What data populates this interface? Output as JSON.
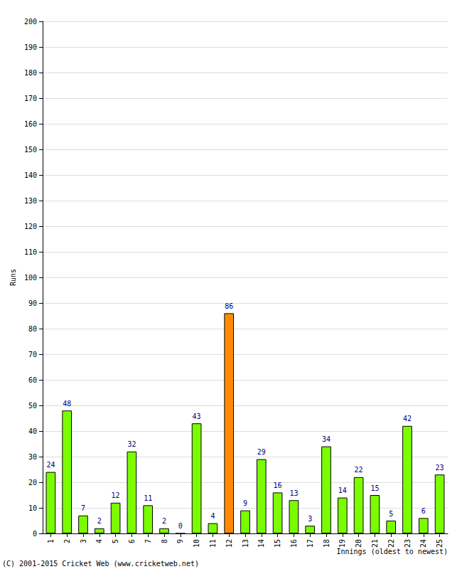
{
  "chart_data": {
    "type": "bar",
    "x_label": "Innings (oldest to newest)",
    "y_label": "Runs",
    "annotation": "(C) 2001-2015 Cricket Web (www.cricketweb.net)",
    "categories": [
      "1",
      "2",
      "3",
      "4",
      "5",
      "6",
      "7",
      "8",
      "9",
      "10",
      "11",
      "12",
      "13",
      "14",
      "15",
      "16",
      "17",
      "18",
      "19",
      "20",
      "21",
      "22",
      "23",
      "24",
      "25"
    ],
    "values": [
      24,
      48,
      7,
      2,
      12,
      32,
      11,
      2,
      0,
      43,
      4,
      86,
      9,
      29,
      16,
      13,
      3,
      34,
      14,
      22,
      15,
      5,
      42,
      6,
      23
    ],
    "colors": [
      "#7cfc00",
      "#7cfc00",
      "#7cfc00",
      "#7cfc00",
      "#7cfc00",
      "#7cfc00",
      "#7cfc00",
      "#7cfc00",
      "#7cfc00",
      "#7cfc00",
      "#7cfc00",
      "#ff8c00",
      "#7cfc00",
      "#7cfc00",
      "#7cfc00",
      "#7cfc00",
      "#7cfc00",
      "#7cfc00",
      "#7cfc00",
      "#7cfc00",
      "#7cfc00",
      "#7cfc00",
      "#7cfc00",
      "#7cfc00",
      "#7cfc00"
    ],
    "ylim": [
      0,
      200
    ],
    "yticks": [
      0,
      10,
      20,
      30,
      40,
      50,
      60,
      70,
      80,
      90,
      100,
      110,
      120,
      130,
      140,
      150,
      160,
      170,
      180,
      190,
      200
    ],
    "grid": true,
    "data_labels": true
  }
}
